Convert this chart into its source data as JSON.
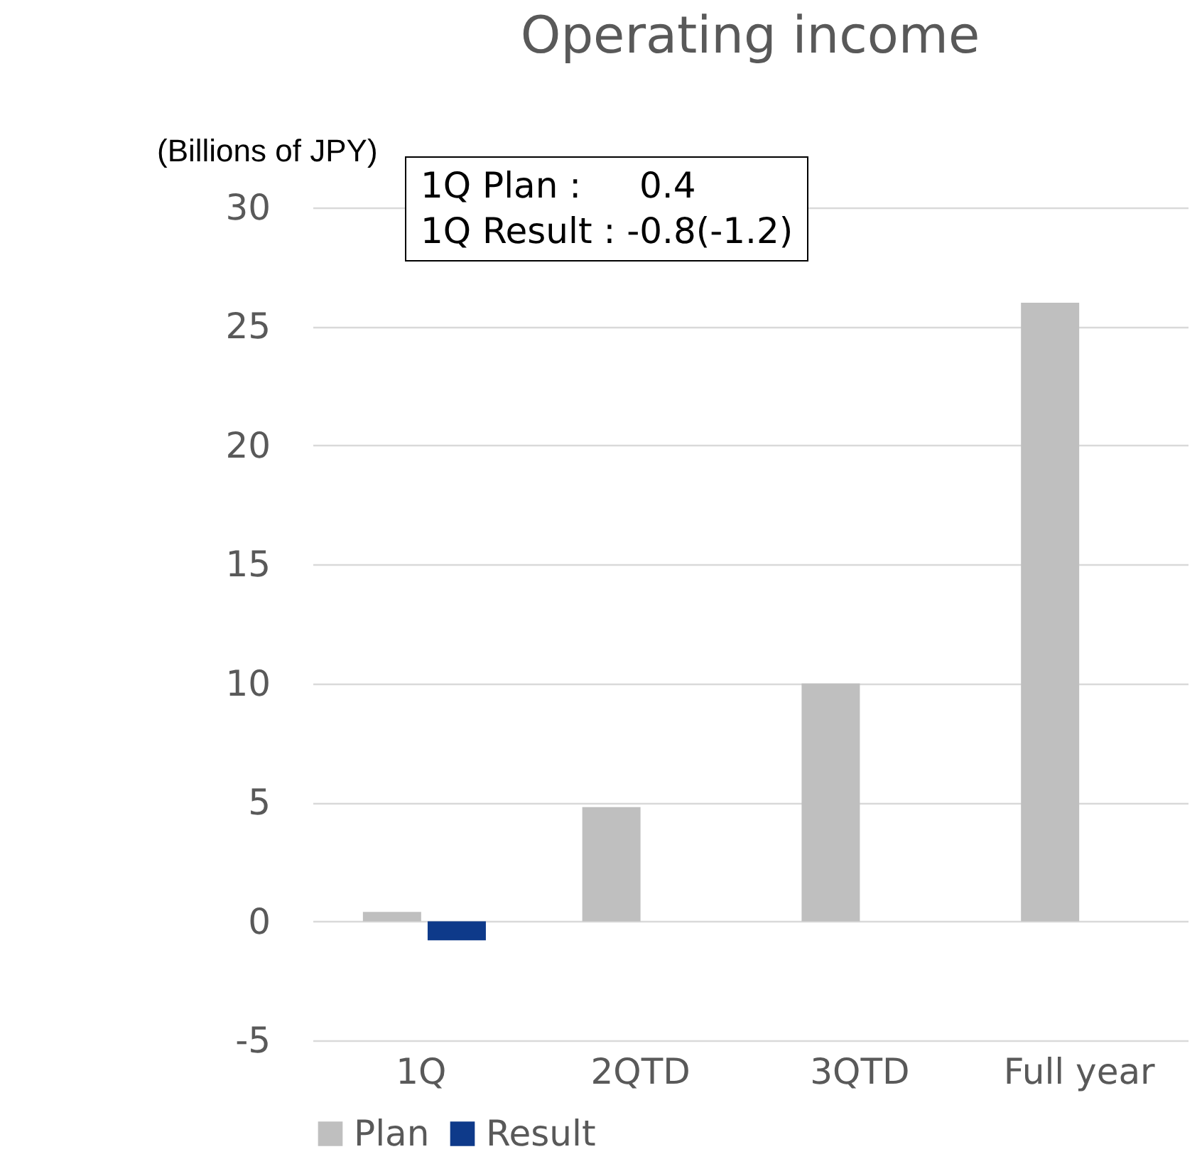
{
  "chart_data": {
    "type": "bar",
    "title": "Operating income",
    "ylabel": "(Billions of JPY)",
    "categories": [
      "1Q",
      "2QTD",
      "3QTD",
      "Full year"
    ],
    "series": [
      {
        "name": "Plan",
        "color": "#bfbfbf",
        "values": [
          0.4,
          4.8,
          10.0,
          26.0
        ]
      },
      {
        "name": "Result",
        "color": "#0e3a8a",
        "values": [
          -0.8,
          null,
          null,
          null
        ]
      }
    ],
    "ylim": [
      -5,
      30
    ],
    "yticks": [
      -5,
      0,
      5,
      10,
      15,
      20,
      25,
      30
    ],
    "grid": "y",
    "legend": "bottom",
    "annotations": [
      "1Q Plan :　  0.4",
      "1Q Result : -0.8(-1.2)"
    ]
  }
}
